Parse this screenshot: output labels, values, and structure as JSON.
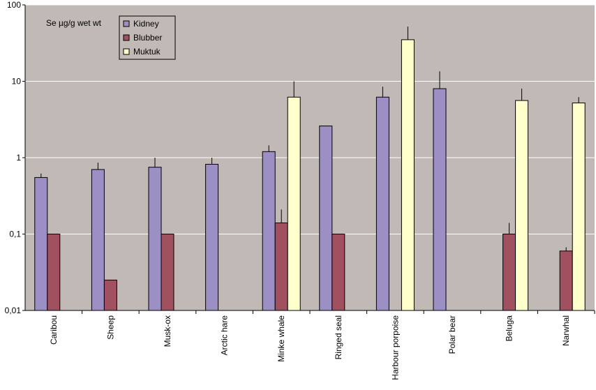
{
  "colors": {
    "plot_background": "#c0b9b6",
    "gridline": "#ffffff",
    "axis": "#000000",
    "kidney": "#9b8fc4",
    "blubber": "#a0505f",
    "muktuk": "#ffffcc",
    "legend_background": "#c0b9b6"
  },
  "chart_data": {
    "type": "bar",
    "title": "",
    "annotation": "Se µg/g wet wt",
    "xlabel": "",
    "ylabel": "",
    "yscale": "log",
    "ylim": [
      0.01,
      100
    ],
    "yticks": [
      {
        "value": 100,
        "label": "100"
      },
      {
        "value": 10,
        "label": "10"
      },
      {
        "value": 1,
        "label": "1"
      },
      {
        "value": 0.1,
        "label": "0,1"
      },
      {
        "value": 0.01,
        "label": "0,01"
      }
    ],
    "grid": true,
    "legend_position": "top-left",
    "categories": [
      "Caribou",
      "Sheep",
      "Musk-ox",
      "Arctic hare",
      "Minke whale",
      "Ringed seal",
      "Harbour porpoise",
      "Polar bear",
      "Beluga",
      "Narwhal"
    ],
    "series": [
      {
        "name": "Kidney",
        "values": [
          0.55,
          0.7,
          0.75,
          0.82,
          1.2,
          2.6,
          6.2,
          8.0,
          null,
          null
        ],
        "error": [
          0.62,
          0.86,
          1.0,
          1.0,
          1.45,
          null,
          8.5,
          13.5,
          null,
          null
        ]
      },
      {
        "name": "Blubber",
        "values": [
          0.1,
          0.025,
          0.1,
          null,
          0.14,
          0.1,
          null,
          null,
          0.1,
          0.06
        ],
        "error": [
          null,
          null,
          null,
          null,
          0.21,
          null,
          null,
          null,
          0.14,
          0.067
        ]
      },
      {
        "name": "Muktuk",
        "values": [
          null,
          null,
          null,
          null,
          6.2,
          null,
          35,
          null,
          5.6,
          5.2
        ],
        "error": [
          null,
          null,
          null,
          null,
          10,
          null,
          52,
          null,
          8.0,
          6.2
        ]
      }
    ]
  }
}
